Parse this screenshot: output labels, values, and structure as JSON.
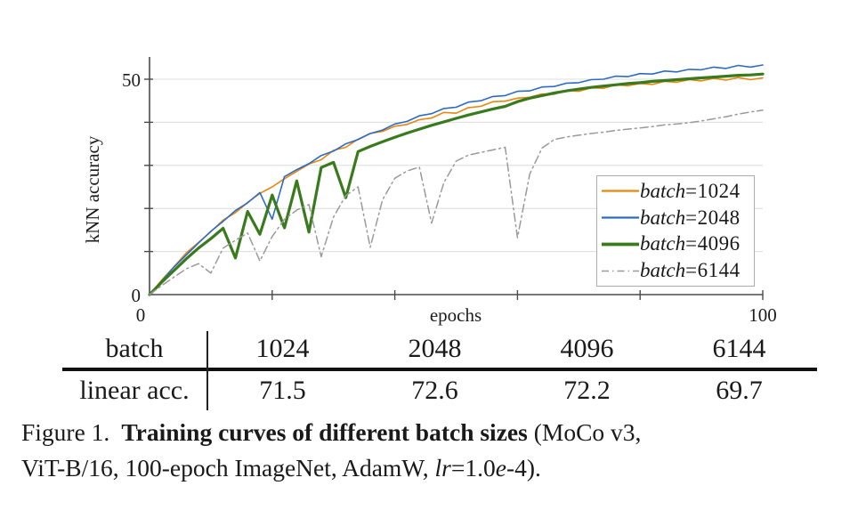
{
  "chart_data": {
    "type": "line",
    "title": "",
    "xlabel": "epochs",
    "ylabel": "kNN accuracy",
    "xlim": [
      0,
      100
    ],
    "ylim": [
      0,
      55
    ],
    "x_ticks": [
      0,
      20,
      40,
      60,
      80,
      100
    ],
    "x_tick_labels": [
      "0",
      "100"
    ],
    "y_ticks": [
      0,
      10,
      20,
      30,
      40,
      50
    ],
    "y_tick_labels": [
      "0",
      "50"
    ],
    "grid": "horizontal-only",
    "legend_position": "lower right",
    "axis_color": "#4a4a4a",
    "grid_color": "#dcdcdc",
    "x": [
      0,
      2,
      4,
      6,
      8,
      10,
      12,
      14,
      16,
      18,
      20,
      22,
      24,
      26,
      28,
      30,
      32,
      34,
      36,
      38,
      40,
      42,
      44,
      46,
      48,
      50,
      52,
      54,
      56,
      58,
      60,
      62,
      64,
      66,
      68,
      70,
      72,
      74,
      76,
      78,
      80,
      82,
      84,
      86,
      88,
      90,
      92,
      94,
      96,
      98,
      100
    ],
    "series": [
      {
        "name": "batch=1024",
        "color": "#e8860d",
        "style": "solid",
        "width": 1.6,
        "values": [
          0,
          3.4,
          6.5,
          9.7,
          12.1,
          14.6,
          17.3,
          19.0,
          21.4,
          23.5,
          25.0,
          26.9,
          28.6,
          30.3,
          31.3,
          33.5,
          34.2,
          36.1,
          37.4,
          37.9,
          39.1,
          39.5,
          40.6,
          41.0,
          42.3,
          42.1,
          43.4,
          43.7,
          44.8,
          44.9,
          45.6,
          45.8,
          46.6,
          46.5,
          47.4,
          47.2,
          48.0,
          47.9,
          48.7,
          48.5,
          49.0,
          48.8,
          49.5,
          49.3,
          49.9,
          49.6,
          50.2,
          49.8,
          50.4,
          49.9,
          50.3
        ]
      },
      {
        "name": "batch=2048",
        "color": "#2d6bc4",
        "style": "solid",
        "width": 1.6,
        "values": [
          0,
          3.2,
          6.4,
          9.2,
          12.0,
          14.7,
          17.0,
          19.5,
          21.3,
          23.7,
          17.5,
          27.4,
          29.0,
          30.4,
          32.3,
          33.3,
          35.0,
          36.0,
          37.4,
          38.2,
          39.6,
          40.2,
          41.5,
          42.0,
          43.2,
          43.5,
          44.7,
          45.0,
          46.0,
          46.2,
          47.2,
          47.3,
          48.2,
          48.3,
          49.1,
          49.2,
          49.9,
          50.0,
          50.7,
          50.6,
          51.3,
          51.2,
          51.9,
          51.7,
          52.3,
          52.2,
          52.8,
          52.5,
          53.2,
          52.8,
          53.3
        ]
      },
      {
        "name": "batch=4096",
        "color": "#397a1d",
        "style": "solid",
        "width": 3.2,
        "values": [
          0,
          2.9,
          5.6,
          8.3,
          10.8,
          13.0,
          15.4,
          8.5,
          19.3,
          14.0,
          23.1,
          15.5,
          26.4,
          14.5,
          29.5,
          30.7,
          22.5,
          33.2,
          34.4,
          35.5,
          36.5,
          37.5,
          38.4,
          39.3,
          40.1,
          40.9,
          41.7,
          42.4,
          43.1,
          43.7,
          44.8,
          45.6,
          46.2,
          46.8,
          47.3,
          47.7,
          48.1,
          48.4,
          48.7,
          49.0,
          49.2,
          49.5,
          49.7,
          49.9,
          50.1,
          50.3,
          50.5,
          50.7,
          50.9,
          51.0,
          51.2
        ]
      },
      {
        "name": "batch=6144",
        "color": "#9a9a9a",
        "style": "dashdot",
        "width": 1.5,
        "values": [
          0,
          2.1,
          4.1,
          6.0,
          7.2,
          5.0,
          10.8,
          12.6,
          14.3,
          7.8,
          13.5,
          17.5,
          19.6,
          20.9,
          8.8,
          18.0,
          23.0,
          25.0,
          11.0,
          22.0,
          27.0,
          28.7,
          29.6,
          16.6,
          26.0,
          31.0,
          32.4,
          33.0,
          33.6,
          34.2,
          13.2,
          28.0,
          34.0,
          36.0,
          36.6,
          37.0,
          37.4,
          37.7,
          38.1,
          38.4,
          38.7,
          39.0,
          39.4,
          39.6,
          39.9,
          40.3,
          40.8,
          41.3,
          41.9,
          42.4,
          42.8
        ]
      }
    ]
  },
  "legend": {
    "items": [
      {
        "prefix": "batch",
        "rest": "=1024"
      },
      {
        "prefix": "batch",
        "rest": "=2048"
      },
      {
        "prefix": "batch",
        "rest": "=4096"
      },
      {
        "prefix": "batch",
        "rest": "=6144"
      }
    ]
  },
  "table": {
    "row_label_header": "batch",
    "row_label_data": "linear acc.",
    "columns": [
      "1024",
      "2048",
      "4096",
      "6144"
    ],
    "linear_acc": [
      "71.5",
      "72.6",
      "72.2",
      "69.7"
    ]
  },
  "caption": {
    "figure_label": "Figure 1.",
    "bold_title": "Training curves of different batch sizes",
    "line1_rest": " (MoCo v3,",
    "line2_part1": "ViT-B/16, 100-epoch ImageNet, AdamW, ",
    "lr_italic": "lr",
    "line2_part2": "=1.0",
    "e_italic": "e",
    "line2_part3": "-4)."
  }
}
